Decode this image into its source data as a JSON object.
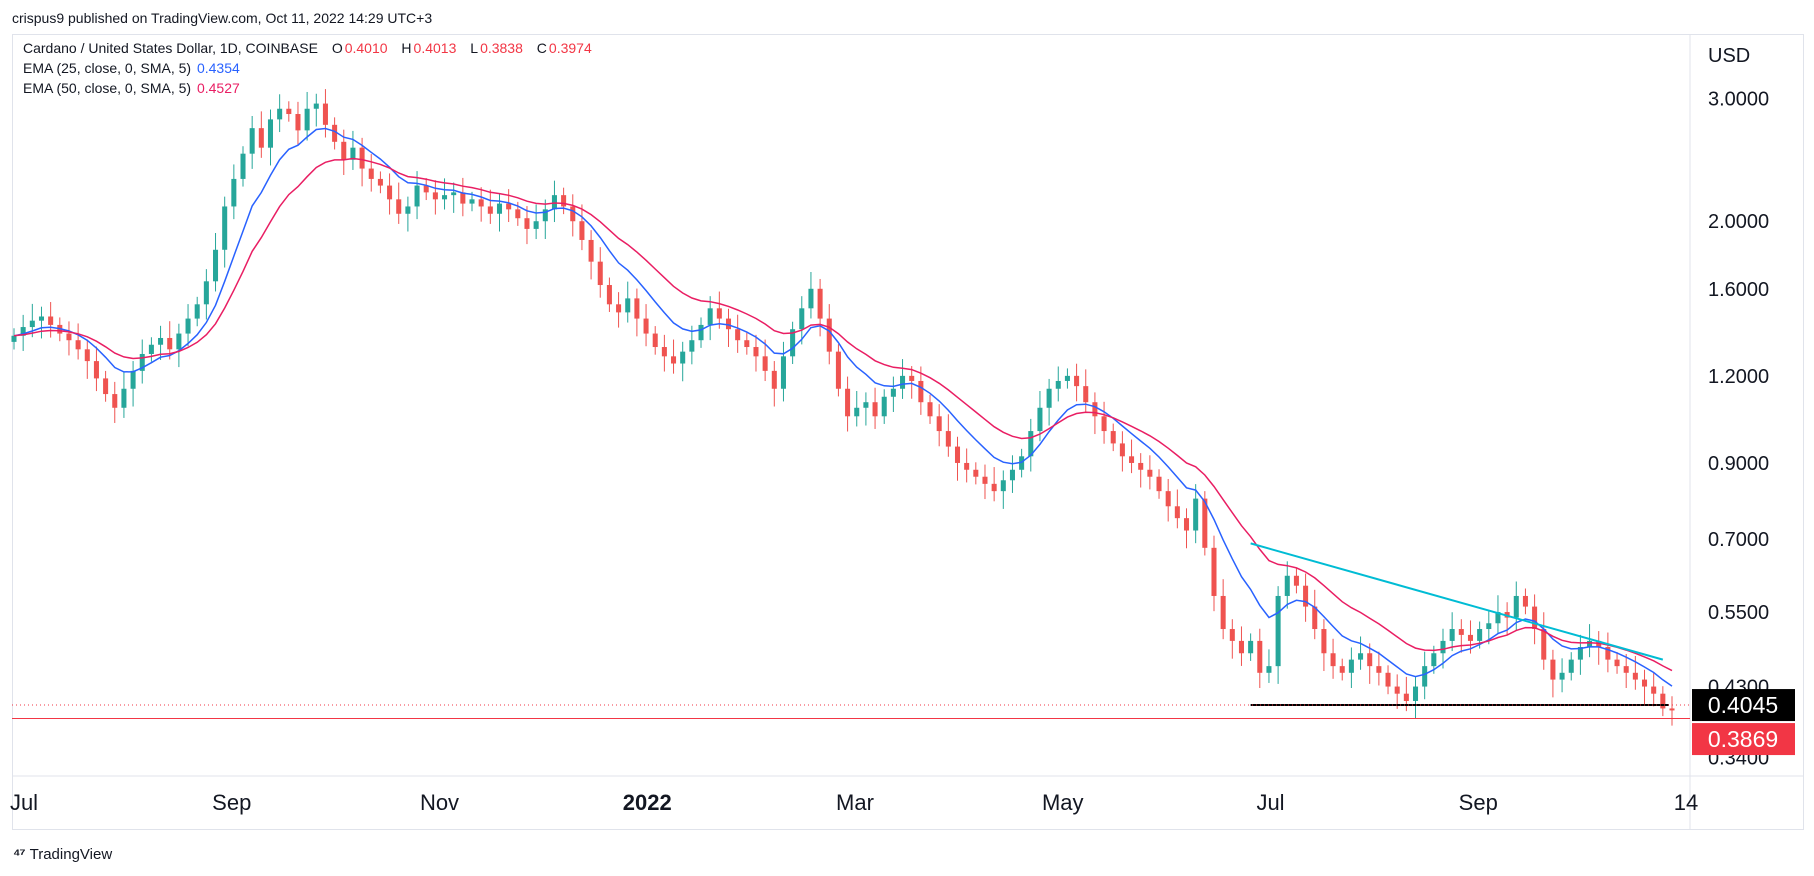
{
  "header": {
    "published": "crispus9 published on TradingView.com, Oct 11, 2022 14:29 UTC+3"
  },
  "legend": {
    "symbol": "Cardano / United States Dollar, 1D, COINBASE",
    "o_label": "O",
    "o_value": "0.4010",
    "h_label": "H",
    "h_value": "0.4013",
    "l_label": "L",
    "l_value": "0.3838",
    "c_label": "C",
    "c_value": "0.3974",
    "ema25_label": "EMA (25, close, 0, SMA, 5)",
    "ema25_value": "0.4354",
    "ema50_label": "EMA (50, close, 0, SMA, 5)",
    "ema50_value": "0.4527"
  },
  "footer": {
    "brand": "TradingView"
  },
  "colors": {
    "up": "#26a69a",
    "down": "#ef5350",
    "ema25": "#2962ff",
    "ema50": "#e91e63",
    "trendline": "#00bcd4",
    "support": "#000000",
    "lastprice": "#f23645",
    "axis_text": "#131722"
  },
  "chart_data": {
    "type": "candlestick",
    "ylabel": "USD",
    "yscale": "log",
    "ylim": [
      0.32,
      3.7
    ],
    "yticks": [
      "3.0000",
      "2.0000",
      "1.6000",
      "1.2000",
      "0.9000",
      "0.7000",
      "0.5500",
      "0.4300",
      "0.3400"
    ],
    "xticks": [
      "Jul",
      "Sep",
      "Nov",
      "2022",
      "Mar",
      "May",
      "Jul",
      "Sep",
      "14"
    ],
    "badges": [
      {
        "label": "0.4045",
        "value": 0.4045,
        "color": "#000000"
      },
      {
        "label": "0.3869",
        "value": 0.3869,
        "color": "#f23645"
      }
    ],
    "closes": [
      1.37,
      1.41,
      1.44,
      1.46,
      1.42,
      1.38,
      1.35,
      1.31,
      1.26,
      1.19,
      1.13,
      1.08,
      1.15,
      1.22,
      1.29,
      1.33,
      1.36,
      1.31,
      1.38,
      1.45,
      1.52,
      1.64,
      1.82,
      2.1,
      2.3,
      2.5,
      2.72,
      2.55,
      2.8,
      2.9,
      2.85,
      2.7,
      2.9,
      2.95,
      2.75,
      2.6,
      2.45,
      2.55,
      2.38,
      2.3,
      2.25,
      2.15,
      2.05,
      2.1,
      2.25,
      2.2,
      2.15,
      2.18,
      2.2,
      2.12,
      2.15,
      2.1,
      2.05,
      2.12,
      2.08,
      2.02,
      1.95,
      2.0,
      2.08,
      2.18,
      2.1,
      2.0,
      1.88,
      1.75,
      1.62,
      1.52,
      1.48,
      1.55,
      1.45,
      1.38,
      1.32,
      1.28,
      1.25,
      1.3,
      1.35,
      1.42,
      1.5,
      1.45,
      1.4,
      1.35,
      1.32,
      1.28,
      1.22,
      1.15,
      1.28,
      1.4,
      1.5,
      1.6,
      1.45,
      1.3,
      1.15,
      1.05,
      1.08,
      1.1,
      1.05,
      1.12,
      1.15,
      1.2,
      1.18,
      1.1,
      1.05,
      1.0,
      0.95,
      0.9,
      0.88,
      0.86,
      0.84,
      0.82,
      0.85,
      0.88,
      0.92,
      1.0,
      1.08,
      1.15,
      1.18,
      1.2,
      1.16,
      1.1,
      1.05,
      1.0,
      0.96,
      0.92,
      0.9,
      0.88,
      0.86,
      0.82,
      0.78,
      0.75,
      0.72,
      0.8,
      0.68,
      0.58,
      0.52,
      0.5,
      0.48,
      0.5,
      0.45,
      0.46,
      0.58,
      0.62,
      0.6,
      0.56,
      0.52,
      0.48,
      0.46,
      0.45,
      0.47,
      0.48,
      0.46,
      0.45,
      0.43,
      0.42,
      0.41,
      0.43,
      0.46,
      0.48,
      0.5,
      0.52,
      0.51,
      0.5,
      0.52,
      0.53,
      0.55,
      0.54,
      0.58,
      0.56,
      0.52,
      0.47,
      0.44,
      0.45,
      0.47,
      0.49,
      0.5,
      0.49,
      0.47,
      0.46,
      0.45,
      0.44,
      0.43,
      0.42,
      0.4,
      0.3974
    ],
    "series": [
      {
        "name": "EMA (25, close, 0, SMA, 5)",
        "color": "#2962ff",
        "last": 0.4354
      },
      {
        "name": "EMA (50, close, 0, SMA, 5)",
        "color": "#e91e63",
        "last": 0.4527
      }
    ],
    "annotations": [
      {
        "type": "trendline",
        "from": [
          0.0,
          0.69
        ],
        "to": [
          1.0,
          0.47
        ],
        "color": "#00bcd4"
      },
      {
        "type": "support",
        "value": 0.4045,
        "color": "#000000"
      }
    ]
  }
}
